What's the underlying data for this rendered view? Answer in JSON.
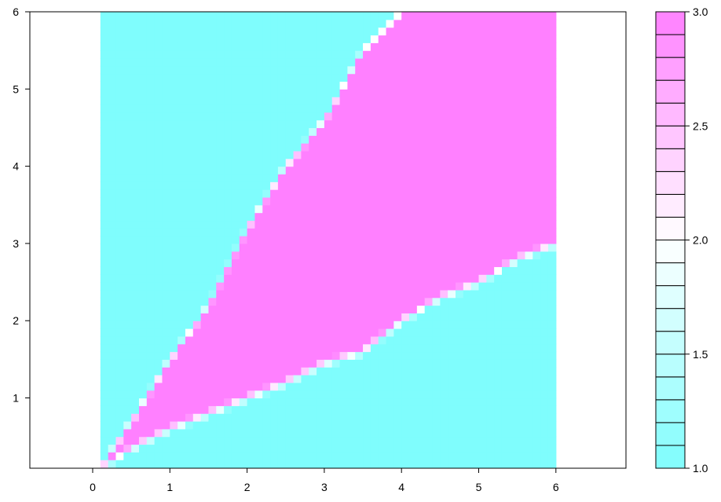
{
  "chart_data": {
    "type": "heatmap",
    "title": "",
    "xlabel": "",
    "ylabel": "",
    "xlim": [
      -0.8,
      6.9
    ],
    "ylim": [
      0.1,
      6.0
    ],
    "data_extent": {
      "x": [
        0.1,
        6.0
      ],
      "y": [
        0.1,
        6.0
      ]
    },
    "x_ticks": [
      "0",
      "1",
      "2",
      "3",
      "4",
      "5",
      "6"
    ],
    "y_ticks": [
      "1",
      "2",
      "3",
      "4",
      "5",
      "6"
    ],
    "legend_ticks": [
      "1.0",
      "1.5",
      "2.0",
      "2.5",
      "3.0"
    ],
    "zlim": [
      1.0,
      3.0
    ],
    "colors": {
      "low": "#7ffdfd",
      "mid": "#ffffff",
      "high": "#ff80ff",
      "axis": "#000000"
    },
    "description_grid": {
      "resolution": 0.1,
      "regions": [
        {
          "name": "upper-left-region",
          "value": 1.0,
          "boundary_upper_wedge_lower_edge": [
            [
              0.1,
              0.1
            ],
            [
              0.6,
              0.4
            ],
            [
              1.0,
              0.6
            ],
            [
              1.5,
              0.8
            ],
            [
              2.0,
              1.0
            ],
            [
              2.5,
              1.2
            ],
            [
              3.0,
              1.45
            ],
            [
              3.5,
              1.6
            ],
            [
              4.0,
              2.0
            ],
            [
              4.5,
              2.3
            ],
            [
              5.0,
              2.5
            ],
            [
              5.5,
              2.8
            ],
            [
              6.0,
              3.0
            ]
          ]
        },
        {
          "name": "magenta-wedge",
          "value": 3.0,
          "boundary_upper_left": [
            [
              0.1,
              0.1
            ],
            [
              0.5,
              0.7
            ],
            [
              1.0,
              1.5
            ],
            [
              1.5,
              2.2
            ],
            [
              2.0,
              3.2
            ],
            [
              2.5,
              4.0
            ],
            [
              3.0,
              4.6
            ],
            [
              3.5,
              5.5
            ],
            [
              4.0,
              6.0
            ]
          ]
        },
        {
          "name": "lower-right-region",
          "value": 1.0
        }
      ]
    }
  }
}
